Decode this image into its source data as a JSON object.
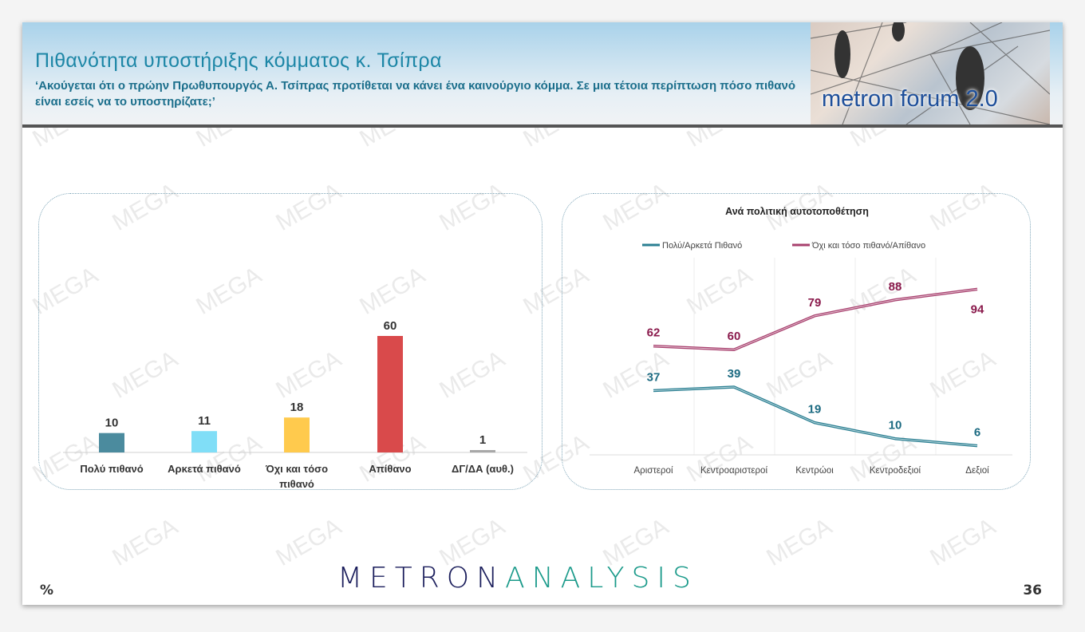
{
  "header": {
    "title": "Πιθανότητα υποστήριξης κόμματος κ. Τσίπρα",
    "subtitle": "‘Ακούγεται ότι ο πρώην Πρωθυπουργός Α. Τσίπρας προτίθεται να κάνει ένα καινούργιο κόμμα. Σε μια τέτοια περίπτωση πόσο πιθανό είναι εσείς να το υποστηρίζατε;’",
    "forum_logo": "metron forum 2.0"
  },
  "footer": {
    "unit": "%",
    "logo_part1": "METRON",
    "logo_part2": "ANALYSIS",
    "page_number": "36"
  },
  "watermark": "MEGA",
  "chart_data": [
    {
      "type": "bar",
      "categories": [
        "Πολύ πιθανό",
        "Αρκετά πιθανό",
        "Όχι και τόσο πιθανό",
        "Απίθανο",
        "ΔΓ/ΔΑ (αυθ.)"
      ],
      "values": [
        10,
        11,
        18,
        60,
        1
      ],
      "colors": [
        "#4b8b9e",
        "#80def7",
        "#ffca4d",
        "#d94a4b",
        "#a8a8a8"
      ],
      "ylim": [
        0,
        60
      ],
      "grid": false
    },
    {
      "type": "line",
      "title": "Ανά πολιτική αυτοτοποθέτηση",
      "categories": [
        "Αριστεροί",
        "Κεντροαριστεροί",
        "Κεντρώοι",
        "Κεντροδεξιοί",
        "Δεξιοί"
      ],
      "series": [
        {
          "name": "Πολύ/Αρκετά Πιθανό",
          "values": [
            37,
            39,
            19,
            10,
            6
          ],
          "color": "#2a7f92",
          "label_color": "#1d6b82"
        },
        {
          "name": "Όχι και τόσο πιθανό/Απίθανο",
          "values": [
            62,
            60,
            79,
            88,
            94
          ],
          "color": "#a8406e",
          "label_color": "#8a1a4c"
        }
      ],
      "legend": "top",
      "grid": "vertical",
      "ylim": [
        0,
        100
      ]
    }
  ]
}
